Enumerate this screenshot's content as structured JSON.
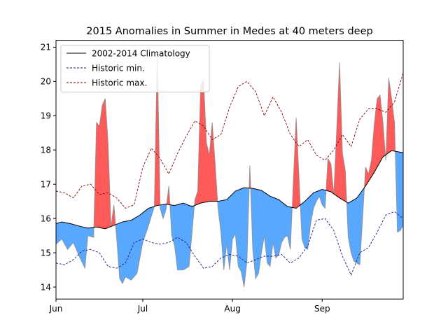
{
  "chart_data": {
    "type": "area",
    "title": "2015 Anomalies in Summer in Medes at 40 meters deep",
    "xlabel": "",
    "ylabel": "",
    "xlim": [
      "2015-06-01",
      "2015-09-29"
    ],
    "ylim": [
      13.65,
      21.2
    ],
    "grid": false,
    "legend_position": "top-left",
    "x_ticks": [
      {
        "date": "2015-06-01",
        "label": "Jun"
      },
      {
        "date": "2015-07-01",
        "label": "Jul"
      },
      {
        "date": "2015-08-01",
        "label": "Aug"
      },
      {
        "date": "2015-09-01",
        "label": "Sep"
      }
    ],
    "y_ticks": [
      14,
      15,
      16,
      17,
      18,
      19,
      20,
      21
    ],
    "colors": {
      "climatology": "#000000",
      "historic_min": "#1a1a80",
      "historic_max": "#8b0000",
      "warm_anomaly": "#ff5a5a",
      "cold_anomaly": "#59a8ff",
      "observed": "#8a8a8a"
    },
    "series": [
      {
        "name": "2002-2014 Climatology",
        "style": "solid",
        "x": [
          "2015-06-01",
          "2015-06-03",
          "2015-06-06",
          "2015-06-09",
          "2015-06-12",
          "2015-06-15",
          "2015-06-18",
          "2015-06-21",
          "2015-06-24",
          "2015-06-27",
          "2015-06-30",
          "2015-07-03",
          "2015-07-06",
          "2015-07-09",
          "2015-07-12",
          "2015-07-15",
          "2015-07-18",
          "2015-07-21",
          "2015-07-24",
          "2015-07-27",
          "2015-07-30",
          "2015-08-02",
          "2015-08-05",
          "2015-08-08",
          "2015-08-11",
          "2015-08-14",
          "2015-08-17",
          "2015-08-20",
          "2015-08-23",
          "2015-08-26",
          "2015-08-29",
          "2015-09-01",
          "2015-09-04",
          "2015-09-07",
          "2015-09-10",
          "2015-09-13",
          "2015-09-16",
          "2015-09-19",
          "2015-09-22",
          "2015-09-25",
          "2015-09-29"
        ],
        "values": [
          15.85,
          15.9,
          15.85,
          15.78,
          15.72,
          15.75,
          15.7,
          15.8,
          15.9,
          15.95,
          16.1,
          16.3,
          16.38,
          16.42,
          16.38,
          16.45,
          16.35,
          16.45,
          16.5,
          16.5,
          16.55,
          16.8,
          16.9,
          16.88,
          16.82,
          16.65,
          16.55,
          16.35,
          16.3,
          16.5,
          16.75,
          16.85,
          16.78,
          16.6,
          16.45,
          16.6,
          16.95,
          17.35,
          17.8,
          17.98,
          17.92
        ]
      },
      {
        "name": "Historic min.",
        "style": "dashed",
        "x": [
          "2015-06-01",
          "2015-06-04",
          "2015-06-07",
          "2015-06-10",
          "2015-06-13",
          "2015-06-16",
          "2015-06-19",
          "2015-06-22",
          "2015-06-25",
          "2015-06-28",
          "2015-07-01",
          "2015-07-04",
          "2015-07-07",
          "2015-07-10",
          "2015-07-13",
          "2015-07-16",
          "2015-07-19",
          "2015-07-22",
          "2015-07-25",
          "2015-07-28",
          "2015-07-31",
          "2015-08-03",
          "2015-08-06",
          "2015-08-09",
          "2015-08-12",
          "2015-08-15",
          "2015-08-18",
          "2015-08-21",
          "2015-08-24",
          "2015-08-27",
          "2015-08-30",
          "2015-09-02",
          "2015-09-05",
          "2015-09-08",
          "2015-09-11",
          "2015-09-14",
          "2015-09-17",
          "2015-09-20",
          "2015-09-23",
          "2015-09-26",
          "2015-09-29"
        ],
        "values": [
          14.7,
          14.65,
          14.8,
          15.05,
          15.1,
          15.0,
          14.6,
          14.55,
          14.7,
          15.3,
          15.4,
          15.3,
          15.25,
          15.3,
          15.45,
          15.3,
          14.9,
          14.55,
          14.6,
          14.85,
          14.95,
          14.9,
          14.7,
          14.8,
          14.9,
          14.9,
          14.95,
          14.7,
          14.85,
          15.2,
          15.95,
          16.0,
          15.65,
          14.9,
          14.35,
          15.0,
          15.15,
          15.6,
          16.1,
          16.2,
          16.0
        ]
      },
      {
        "name": "Historic max.",
        "style": "dashed",
        "x": [
          "2015-06-01",
          "2015-06-04",
          "2015-06-07",
          "2015-06-10",
          "2015-06-13",
          "2015-06-16",
          "2015-06-19",
          "2015-06-22",
          "2015-06-25",
          "2015-06-28",
          "2015-07-01",
          "2015-07-04",
          "2015-07-07",
          "2015-07-10",
          "2015-07-13",
          "2015-07-16",
          "2015-07-19",
          "2015-07-22",
          "2015-07-25",
          "2015-07-28",
          "2015-07-31",
          "2015-08-03",
          "2015-08-06",
          "2015-08-09",
          "2015-08-12",
          "2015-08-15",
          "2015-08-18",
          "2015-08-21",
          "2015-08-24",
          "2015-08-27",
          "2015-08-30",
          "2015-09-02",
          "2015-09-05",
          "2015-09-08",
          "2015-09-11",
          "2015-09-14",
          "2015-09-17",
          "2015-09-20",
          "2015-09-23",
          "2015-09-26",
          "2015-09-29"
        ],
        "values": [
          16.8,
          16.75,
          16.6,
          16.95,
          17.0,
          16.7,
          16.75,
          16.6,
          16.3,
          16.4,
          17.5,
          18.05,
          17.75,
          17.3,
          17.9,
          18.4,
          18.85,
          18.7,
          18.3,
          18.45,
          19.25,
          19.85,
          20.0,
          19.7,
          19.0,
          19.55,
          19.1,
          18.45,
          18.1,
          18.3,
          17.85,
          17.7,
          18.0,
          18.45,
          18.1,
          18.9,
          19.2,
          19.2,
          19.1,
          19.4,
          20.25
        ]
      },
      {
        "name": "",
        "style": "observed",
        "x": [
          "2015-06-01",
          "2015-06-03",
          "2015-06-05",
          "2015-06-07",
          "2015-06-09",
          "2015-06-11",
          "2015-06-12",
          "2015-06-14",
          "2015-06-15",
          "2015-06-16",
          "2015-06-17",
          "2015-06-18",
          "2015-06-19",
          "2015-06-20",
          "2015-06-21",
          "2015-06-22",
          "2015-06-23",
          "2015-06-24",
          "2015-06-25",
          "2015-06-27",
          "2015-06-29",
          "2015-07-01",
          "2015-07-03",
          "2015-07-05",
          "2015-07-06",
          "2015-07-07",
          "2015-07-08",
          "2015-07-09",
          "2015-07-10",
          "2015-07-11",
          "2015-07-12",
          "2015-07-13",
          "2015-07-15",
          "2015-07-17",
          "2015-07-19",
          "2015-07-20",
          "2015-07-21",
          "2015-07-22",
          "2015-07-23",
          "2015-07-24",
          "2015-07-25",
          "2015-07-26",
          "2015-07-27",
          "2015-07-28",
          "2015-07-29",
          "2015-07-30",
          "2015-07-31",
          "2015-08-01",
          "2015-08-02",
          "2015-08-03",
          "2015-08-04",
          "2015-08-05",
          "2015-08-06",
          "2015-08-07",
          "2015-08-08",
          "2015-08-09",
          "2015-08-10",
          "2015-08-11",
          "2015-08-12",
          "2015-08-13",
          "2015-08-14",
          "2015-08-15",
          "2015-08-16",
          "2015-08-17",
          "2015-08-18",
          "2015-08-19",
          "2015-08-20",
          "2015-08-21",
          "2015-08-23",
          "2015-08-25",
          "2015-08-26",
          "2015-08-27",
          "2015-08-28",
          "2015-08-29",
          "2015-08-30",
          "2015-08-31",
          "2015-09-01",
          "2015-09-02",
          "2015-09-03",
          "2015-09-04",
          "2015-09-05",
          "2015-09-06",
          "2015-09-07",
          "2015-09-08",
          "2015-09-09",
          "2015-09-10",
          "2015-09-11",
          "2015-09-12",
          "2015-09-13",
          "2015-09-14",
          "2015-09-16",
          "2015-09-17",
          "2015-09-18",
          "2015-09-19",
          "2015-09-20",
          "2015-09-21",
          "2015-09-22",
          "2015-09-23",
          "2015-09-24",
          "2015-09-25",
          "2015-09-26",
          "2015-09-27",
          "2015-09-28",
          "2015-09-29"
        ],
        "values": [
          15.25,
          15.4,
          15.1,
          15.3,
          14.9,
          14.55,
          15.5,
          15.45,
          18.8,
          18.7,
          19.3,
          19.5,
          18.2,
          15.75,
          16.4,
          15.4,
          14.25,
          14.1,
          14.3,
          14.2,
          14.4,
          15.3,
          15.8,
          16.35,
          20.9,
          16.3,
          16.0,
          16.25,
          16.95,
          15.5,
          15.2,
          14.5,
          14.5,
          14.6,
          16.55,
          16.8,
          19.9,
          20.05,
          18.2,
          17.85,
          18.8,
          17.6,
          16.3,
          15.6,
          14.5,
          15.25,
          14.5,
          15.4,
          15.55,
          14.6,
          14.45,
          14.0,
          14.75,
          17.55,
          15.1,
          14.25,
          14.4,
          15.0,
          15.5,
          14.7,
          14.6,
          15.3,
          14.85,
          14.95,
          15.3,
          15.45,
          15.5,
          15.1,
          18.95,
          15.4,
          15.15,
          15.1,
          15.85,
          16.3,
          16.5,
          16.65,
          16.4,
          16.3,
          17.75,
          17.6,
          16.7,
          18.55,
          20.55,
          17.9,
          17.4,
          15.45,
          15.0,
          14.75,
          14.7,
          14.65,
          17.5,
          17.3,
          17.7,
          18.75,
          19.5,
          19.6,
          18.8,
          17.7,
          20.1,
          19.5,
          18.8,
          15.6,
          15.65,
          15.8
        ]
      }
    ]
  }
}
